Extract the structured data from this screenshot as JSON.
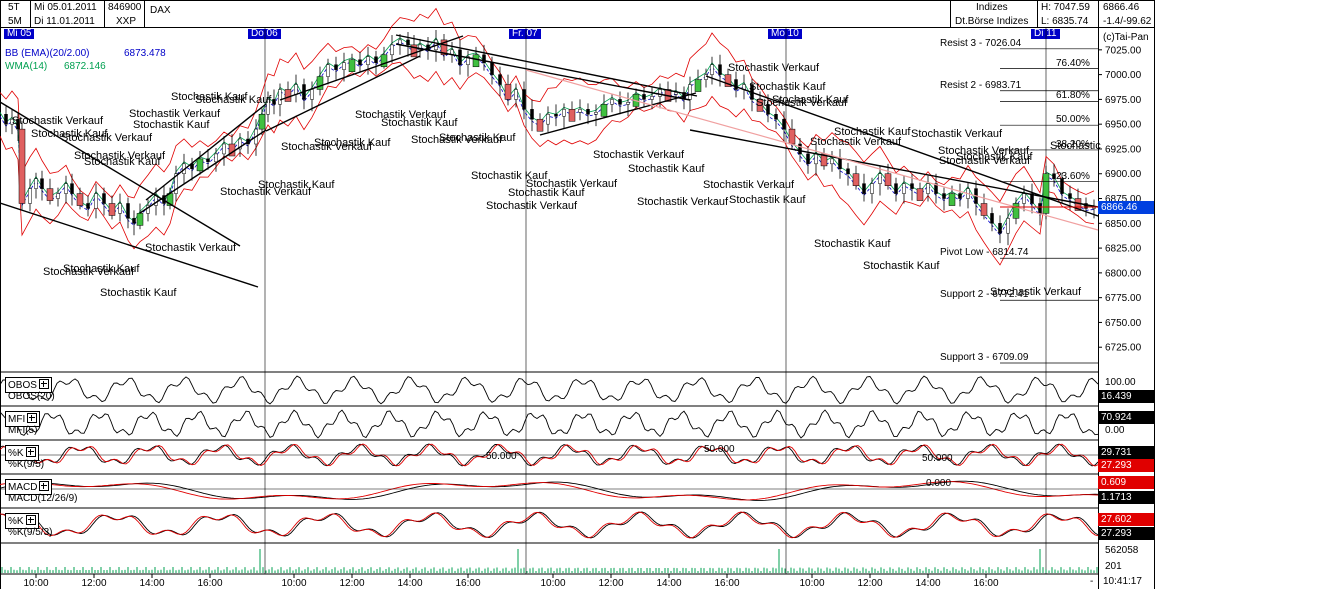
{
  "header": {
    "rows": [
      {
        "interval": "5T",
        "date": "Mi 05.01.2011",
        "code": "846900",
        "name": "DAX"
      },
      {
        "interval": "5M",
        "date": "Di 11.01.2011",
        "code": "XXP",
        "name": ""
      }
    ],
    "market_title": "Indizes",
    "market_subtitle": "Dt.Börse Indizes",
    "high": "H: 7047.59",
    "low": "L: 6835.74",
    "last": "6866.46",
    "change": "-1.4/-99.62",
    "copyright": "(c)Tai-Pan"
  },
  "day_labels": [
    {
      "label": "Mi 05",
      "x": 4
    },
    {
      "label": "Do 06",
      "x": 248
    },
    {
      "label": "Fr. 07",
      "x": 509
    },
    {
      "label": "Mo 10",
      "x": 768
    },
    {
      "label": "Di 11",
      "x": 1031
    }
  ],
  "indicators_main": [
    {
      "label": "BB (EMA)(20/2.00)",
      "value": "6873.478",
      "color": "#0000c8"
    },
    {
      "label": "WMA(14)",
      "value": "6872.146",
      "color": "#00a050"
    }
  ],
  "levels": [
    {
      "label": "Resist 3 - 7026.04",
      "value": 7026.04
    },
    {
      "label": "76.40%",
      "value": 7006
    },
    {
      "label": "Resist 2 - 6983.71",
      "value": 6983.71
    },
    {
      "label": "61.80%",
      "value": 6973
    },
    {
      "label": "50.00%",
      "value": 6949
    },
    {
      "label": "38.20%",
      "value": 6924
    },
    {
      "label": "23.60%",
      "value": 6892
    },
    {
      "label": "Pivot Low - 6814.74",
      "value": 6814.74
    },
    {
      "label": "Support 2 - 6772.41",
      "value": 6772.41
    },
    {
      "label": "Support 3 - 6709.09",
      "value": 6709.09
    }
  ],
  "annotations": [
    {
      "text": "Stochastik Verkauf",
      "x": 12,
      "y": 122
    },
    {
      "text": "Stochastik Kauf",
      "x": 31,
      "y": 135
    },
    {
      "text": "Stochastik Verkauf",
      "x": 61,
      "y": 139
    },
    {
      "text": "Stochastik Kauf",
      "x": 84,
      "y": 163
    },
    {
      "text": "Stochastik Verkauf",
      "x": 74,
      "y": 157
    },
    {
      "text": "Stochastik Verkauf",
      "x": 129,
      "y": 115
    },
    {
      "text": "Stochastik Kauf",
      "x": 133,
      "y": 126
    },
    {
      "text": "Stochastik Kauf",
      "x": 171,
      "y": 98
    },
    {
      "text": "Stochastik Kauf",
      "x": 195,
      "y": 101
    },
    {
      "text": "Stochastik Verkauf",
      "x": 145,
      "y": 249
    },
    {
      "text": "Stochastik Kauf",
      "x": 63,
      "y": 270
    },
    {
      "text": "Stochastik Verkauf",
      "x": 43,
      "y": 273
    },
    {
      "text": "Stochastik Kauf",
      "x": 100,
      "y": 294
    },
    {
      "text": "Stochastik Kauf",
      "x": 258,
      "y": 186
    },
    {
      "text": "Stochastik Verkauf",
      "x": 220,
      "y": 193
    },
    {
      "text": "Stochastik Verkauf",
      "x": 281,
      "y": 148
    },
    {
      "text": "Stochastik Kauf",
      "x": 314,
      "y": 144
    },
    {
      "text": "Stochastik Verkauf",
      "x": 355,
      "y": 116
    },
    {
      "text": "Stochastik Kauf",
      "x": 381,
      "y": 124
    },
    {
      "text": "Stochastik Kauf",
      "x": 439,
      "y": 139
    },
    {
      "text": "Stochastik Verkauf",
      "x": 411,
      "y": 141
    },
    {
      "text": "Stochastik Kauf",
      "x": 471,
      "y": 177
    },
    {
      "text": "Stochastik Verkauf",
      "x": 526,
      "y": 185
    },
    {
      "text": "Stochastik Kauf",
      "x": 508,
      "y": 194
    },
    {
      "text": "Stochastik Verkauf",
      "x": 486,
      "y": 207
    },
    {
      "text": "Stochastik Verkauf",
      "x": 593,
      "y": 156
    },
    {
      "text": "Stochastik Kauf",
      "x": 628,
      "y": 170
    },
    {
      "text": "Stochastik Verkauf",
      "x": 637,
      "y": 203
    },
    {
      "text": "Stochastik Verkauf",
      "x": 728,
      "y": 69
    },
    {
      "text": "Stochastik Kauf",
      "x": 749,
      "y": 88
    },
    {
      "text": "Stochastik Kauf",
      "x": 772,
      "y": 101
    },
    {
      "text": "Stochastik Verkauf",
      "x": 756,
      "y": 104
    },
    {
      "text": "Stochastik Verkauf",
      "x": 703,
      "y": 186
    },
    {
      "text": "Stochastik Kauf",
      "x": 729,
      "y": 201
    },
    {
      "text": "Stochastik Kauf",
      "x": 834,
      "y": 133
    },
    {
      "text": "Stochastik Verkauf",
      "x": 911,
      "y": 135
    },
    {
      "text": "Stochastik Verkauf",
      "x": 810,
      "y": 143
    },
    {
      "text": "Stochastik Verkauf",
      "x": 938,
      "y": 152
    },
    {
      "text": "Stochastik Kauf",
      "x": 956,
      "y": 158
    },
    {
      "text": "Stochastik Verkauf",
      "x": 939,
      "y": 162
    },
    {
      "text": "Stochastik Kauf",
      "x": 814,
      "y": 245
    },
    {
      "text": "Stochastik Kauf",
      "x": 863,
      "y": 267
    },
    {
      "text": "Stochastik Verkauf",
      "x": 990,
      "y": 293
    },
    {
      "text": "Stochastic",
      "x": 1050,
      "y": 147
    }
  ],
  "panels": [
    {
      "button": "OBOS",
      "name": "OBOS(20)",
      "labels": [
        {
          "text": "100.00",
          "value": 100
        }
      ],
      "values": [
        {
          "text": "16.439",
          "style": "blk"
        }
      ]
    },
    {
      "button": "MFI",
      "name": "MFI(5)",
      "labels": [
        {
          "text": "0.00",
          "value": 0
        }
      ],
      "values": [
        {
          "text": "70.924",
          "style": "blk"
        }
      ]
    },
    {
      "button": "%K",
      "name": "%K(9/5)",
      "labels": [
        {
          "text": "50.000",
          "value": 50
        },
        {
          "text": "50.000",
          "value": 50
        },
        {
          "text": "50.000",
          "value": 50
        }
      ],
      "values": [
        {
          "text": "29.731",
          "style": "blk"
        },
        {
          "text": "27.293",
          "style": "red"
        }
      ]
    },
    {
      "button": "MACD",
      "name": "MACD(12/26/9)",
      "labels": [
        {
          "text": "0.000",
          "value": 0
        }
      ],
      "values": [
        {
          "text": "0.609",
          "style": "red"
        },
        {
          "text": "1.1713",
          "style": "blk"
        }
      ]
    },
    {
      "button": "%K",
      "name": "%K(9/5/3)",
      "labels": [],
      "values": [
        {
          "text": "27.602",
          "style": "red"
        },
        {
          "text": "27.293",
          "style": "blk"
        }
      ]
    }
  ],
  "volume": {
    "labels": [
      "562058",
      "201"
    ]
  },
  "footer": {
    "time": "10:41:17",
    "dash": "-"
  },
  "chart_data": {
    "type": "candlestick",
    "instrument": "DAX",
    "y_ticks": [
      6725,
      6750,
      6775,
      6800,
      6825,
      6850,
      6875,
      6900,
      6925,
      6950,
      6975,
      7000,
      7025
    ],
    "ylim": [
      6700,
      7045
    ],
    "x_tick_labels": [
      "10:00",
      "12:00",
      "14:00",
      "16:00",
      "10:00",
      "12:00",
      "14:00",
      "16:00",
      "10:00",
      "12:00",
      "14:00",
      "16:00",
      "10:00",
      "12:00",
      "14:00",
      "16:00"
    ],
    "x_tick_x": [
      36,
      94,
      152,
      210,
      294,
      352,
      410,
      468,
      553,
      611,
      669,
      727,
      812,
      870,
      928,
      986
    ],
    "last_price": 6866.46,
    "price_path": [
      [
        0,
        6960
      ],
      [
        6,
        6950
      ],
      [
        12,
        6955
      ],
      [
        18,
        6945
      ],
      [
        22,
        6870
      ],
      [
        30,
        6885
      ],
      [
        36,
        6895
      ],
      [
        42,
        6885
      ],
      [
        50,
        6875
      ],
      [
        58,
        6880
      ],
      [
        66,
        6890
      ],
      [
        72,
        6880
      ],
      [
        80,
        6870
      ],
      [
        88,
        6865
      ],
      [
        96,
        6880
      ],
      [
        104,
        6870
      ],
      [
        112,
        6860
      ],
      [
        120,
        6870
      ],
      [
        128,
        6855
      ],
      [
        134,
        6850
      ],
      [
        140,
        6860
      ],
      [
        148,
        6868
      ],
      [
        156,
        6878
      ],
      [
        164,
        6870
      ],
      [
        170,
        6880
      ],
      [
        176,
        6900
      ],
      [
        184,
        6910
      ],
      [
        192,
        6905
      ],
      [
        200,
        6915
      ],
      [
        208,
        6912
      ],
      [
        216,
        6920
      ],
      [
        224,
        6930
      ],
      [
        232,
        6925
      ],
      [
        240,
        6935
      ],
      [
        248,
        6930
      ],
      [
        256,
        6945
      ],
      [
        262,
        6960
      ],
      [
        268,
        6975
      ],
      [
        274,
        6970
      ],
      [
        280,
        6985
      ],
      [
        288,
        6980
      ],
      [
        296,
        6990
      ],
      [
        304,
        6975
      ],
      [
        312,
        6985
      ],
      [
        320,
        6998
      ],
      [
        328,
        7010
      ],
      [
        336,
        7005
      ],
      [
        344,
        7012
      ],
      [
        352,
        7015
      ],
      [
        360,
        7010
      ],
      [
        368,
        7018
      ],
      [
        376,
        7012
      ],
      [
        384,
        7020
      ],
      [
        392,
        7030
      ],
      [
        400,
        7035
      ],
      [
        408,
        7030
      ],
      [
        414,
        7025
      ],
      [
        420,
        7030
      ],
      [
        428,
        7025
      ],
      [
        436,
        7035
      ],
      [
        444,
        7020
      ],
      [
        452,
        7025
      ],
      [
        460,
        7010
      ],
      [
        468,
        7018
      ],
      [
        476,
        7020
      ],
      [
        484,
        7012
      ],
      [
        492,
        7000
      ],
      [
        500,
        6990
      ],
      [
        508,
        6975
      ],
      [
        516,
        6985
      ],
      [
        524,
        6965
      ],
      [
        532,
        6955
      ],
      [
        540,
        6950
      ],
      [
        548,
        6960
      ],
      [
        556,
        6958
      ],
      [
        564,
        6965
      ],
      [
        572,
        6962
      ],
      [
        580,
        6965
      ],
      [
        588,
        6960
      ],
      [
        596,
        6962
      ],
      [
        604,
        6970
      ],
      [
        612,
        6975
      ],
      [
        620,
        6970
      ],
      [
        628,
        6972
      ],
      [
        636,
        6980
      ],
      [
        644,
        6975
      ],
      [
        652,
        6978
      ],
      [
        660,
        6985
      ],
      [
        668,
        6980
      ],
      [
        676,
        6982
      ],
      [
        684,
        6975
      ],
      [
        690,
        6990
      ],
      [
        698,
        6995
      ],
      [
        706,
        7000
      ],
      [
        712,
        7010
      ],
      [
        720,
        7000
      ],
      [
        728,
        6995
      ],
      [
        736,
        6985
      ],
      [
        744,
        6990
      ],
      [
        752,
        6975
      ],
      [
        760,
        6970
      ],
      [
        768,
        6960
      ],
      [
        776,
        6955
      ],
      [
        784,
        6945
      ],
      [
        792,
        6930
      ],
      [
        800,
        6920
      ],
      [
        808,
        6910
      ],
      [
        816,
        6920
      ],
      [
        824,
        6910
      ],
      [
        832,
        6915
      ],
      [
        840,
        6905
      ],
      [
        848,
        6900
      ],
      [
        856,
        6890
      ],
      [
        864,
        6880
      ],
      [
        872,
        6890
      ],
      [
        880,
        6900
      ],
      [
        888,
        6890
      ],
      [
        896,
        6880
      ],
      [
        904,
        6890
      ],
      [
        912,
        6885
      ],
      [
        920,
        6880
      ],
      [
        928,
        6890
      ],
      [
        936,
        6880
      ],
      [
        944,
        6875
      ],
      [
        952,
        6880
      ],
      [
        960,
        6875
      ],
      [
        968,
        6885
      ],
      [
        976,
        6870
      ],
      [
        984,
        6860
      ],
      [
        992,
        6850
      ],
      [
        1000,
        6840
      ],
      [
        1008,
        6855
      ],
      [
        1016,
        6870
      ],
      [
        1024,
        6880
      ],
      [
        1032,
        6870
      ],
      [
        1040,
        6860
      ],
      [
        1046,
        6900
      ],
      [
        1054,
        6895
      ],
      [
        1062,
        6880
      ],
      [
        1070,
        6875
      ],
      [
        1078,
        6870
      ],
      [
        1086,
        6865
      ],
      [
        1094,
        6866
      ]
    ]
  }
}
